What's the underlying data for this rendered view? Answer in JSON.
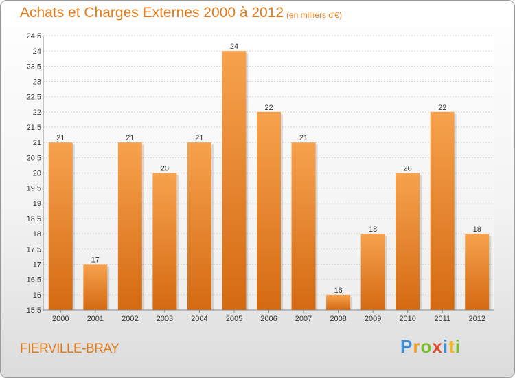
{
  "header": {
    "title": "Achats et Charges Externes 2000 à 2012",
    "unit": "(en milliers d'€)"
  },
  "footer": {
    "commune": "FIERVILLE-BRAY",
    "logo_letters": [
      "P",
      "r",
      "o",
      "x",
      "i",
      "t",
      "i"
    ],
    "logo_colors": [
      "#3a8fd8",
      "#f29a1d",
      "#7bbf2a",
      "#e04b2f",
      "#3a8fd8",
      "#f2b81d",
      "#7bbf2a"
    ]
  },
  "colors": {
    "bar_top": "#f7a24e",
    "bar_bottom": "#d46a12",
    "accent": "#e07b1b"
  },
  "chart_data": {
    "type": "bar",
    "title": "Achats et Charges Externes 2000 à 2012",
    "xlabel": "",
    "ylabel": "",
    "categories": [
      "2000",
      "2001",
      "2002",
      "2003",
      "2004",
      "2005",
      "2006",
      "2007",
      "2008",
      "2009",
      "2010",
      "2011",
      "2012"
    ],
    "values": [
      21,
      17,
      21,
      20,
      21,
      24,
      22,
      21,
      16,
      18,
      20,
      22,
      18
    ],
    "data_labels": [
      "21",
      "17",
      "21",
      "20",
      "21",
      "24",
      "22",
      "21",
      "16",
      "18",
      "20",
      "22",
      "18"
    ],
    "ylim": [
      15.5,
      24.5
    ],
    "yticks": [
      15.5,
      16,
      16.5,
      17,
      17.5,
      18,
      18.5,
      19,
      19.5,
      20,
      20.5,
      21,
      21.5,
      22,
      22.5,
      23,
      23.5,
      24,
      24.5
    ],
    "ytick_labels": [
      "15.5",
      "16",
      "16.5",
      "17",
      "17.5",
      "18",
      "18.5",
      "19",
      "19.5",
      "20",
      "20.5",
      "21",
      "21.5",
      "22",
      "22.5",
      "23",
      "23.5",
      "24",
      "24.5"
    ],
    "grid": true,
    "legend": "none"
  }
}
